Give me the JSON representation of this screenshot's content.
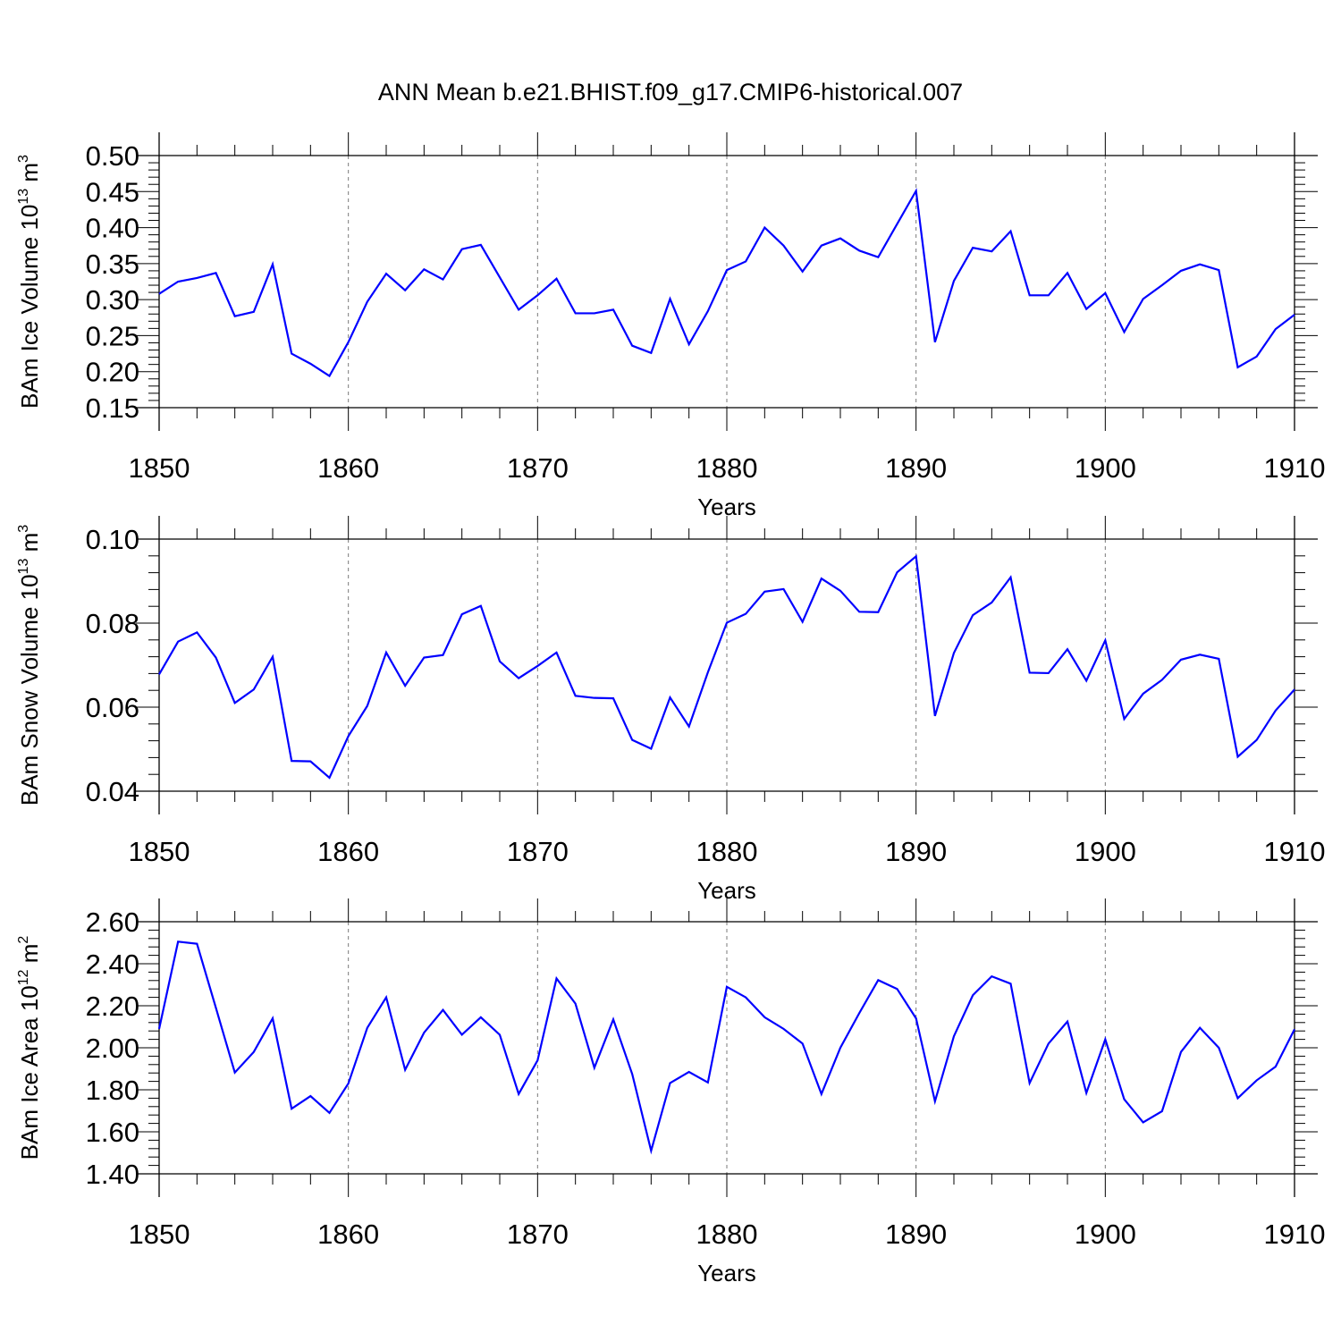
{
  "title": "ANN Mean b.e21.BHIST.f09_g17.CMIP6-historical.007",
  "colors": {
    "line": "#0000ff",
    "axis": "#000000",
    "grid": "#7a7a7a"
  },
  "chart_data": [
    {
      "type": "line",
      "xlabel": "Years",
      "ylabel": "BAm Ice Volume 10",
      "ylabel_exp": "13",
      "ylabel_unit": " m",
      "ylabel_unit_exp": "3",
      "xlim": [
        1850,
        1910
      ],
      "ylim": [
        0.15,
        0.5
      ],
      "x_ticks": [
        1850,
        1860,
        1870,
        1880,
        1890,
        1900,
        1910
      ],
      "y_ticks": [
        "0.15",
        "0.20",
        "0.25",
        "0.30",
        "0.35",
        "0.40",
        "0.45",
        "0.50"
      ],
      "grid": "vertical dashed at major x ticks",
      "x": [
        1850,
        1851,
        1852,
        1853,
        1854,
        1855,
        1856,
        1857,
        1858,
        1859,
        1860,
        1861,
        1862,
        1863,
        1864,
        1865,
        1866,
        1867,
        1868,
        1869,
        1870,
        1871,
        1872,
        1873,
        1874,
        1875,
        1876,
        1877,
        1878,
        1879,
        1880,
        1881,
        1882,
        1883,
        1884,
        1885,
        1886,
        1887,
        1888,
        1889,
        1890,
        1891,
        1892,
        1893,
        1894,
        1895,
        1896,
        1897,
        1898,
        1899,
        1900,
        1901,
        1902,
        1903,
        1904,
        1905,
        1906,
        1907,
        1908,
        1909,
        1910
      ],
      "values": [
        0.308,
        0.325,
        0.33,
        0.337,
        0.277,
        0.283,
        0.349,
        0.225,
        0.211,
        0.194,
        0.241,
        0.297,
        0.336,
        0.313,
        0.342,
        0.328,
        0.37,
        0.376,
        0.331,
        0.286,
        0.306,
        0.329,
        0.281,
        0.281,
        0.286,
        0.236,
        0.226,
        0.301,
        0.238,
        0.284,
        0.341,
        0.353,
        0.4,
        0.375,
        0.339,
        0.375,
        0.385,
        0.368,
        0.359,
        0.405,
        0.451,
        0.241,
        0.326,
        0.372,
        0.367,
        0.395,
        0.306,
        0.306,
        0.337,
        0.287,
        0.309,
        0.255,
        0.301,
        0.32,
        0.34,
        0.349,
        0.341,
        0.206,
        0.221,
        0.259,
        0.279
      ]
    },
    {
      "type": "line",
      "xlabel": "Years",
      "ylabel": "BAm Snow Volume 10",
      "ylabel_exp": "13",
      "ylabel_unit": " m",
      "ylabel_unit_exp": "3",
      "xlim": [
        1850,
        1910
      ],
      "ylim": [
        0.04,
        0.1
      ],
      "x_ticks": [
        1850,
        1860,
        1870,
        1880,
        1890,
        1900,
        1910
      ],
      "y_ticks": [
        "0.04",
        "0.06",
        "0.08",
        "0.10"
      ],
      "grid": "vertical dashed at major x ticks",
      "x": [
        1850,
        1851,
        1852,
        1853,
        1854,
        1855,
        1856,
        1857,
        1858,
        1859,
        1860,
        1861,
        1862,
        1863,
        1864,
        1865,
        1866,
        1867,
        1868,
        1869,
        1870,
        1871,
        1872,
        1873,
        1874,
        1875,
        1876,
        1877,
        1878,
        1879,
        1880,
        1881,
        1882,
        1883,
        1884,
        1885,
        1886,
        1887,
        1888,
        1889,
        1890,
        1891,
        1892,
        1893,
        1894,
        1895,
        1896,
        1897,
        1898,
        1899,
        1900,
        1901,
        1902,
        1903,
        1904,
        1905,
        1906,
        1907,
        1908,
        1909,
        1910
      ],
      "values": [
        0.0678,
        0.0756,
        0.0778,
        0.0718,
        0.061,
        0.0642,
        0.072,
        0.0472,
        0.0471,
        0.0432,
        0.0531,
        0.0603,
        0.073,
        0.0651,
        0.0718,
        0.0724,
        0.0821,
        0.0841,
        0.0709,
        0.0669,
        0.0698,
        0.073,
        0.0627,
        0.0622,
        0.0621,
        0.0522,
        0.0501,
        0.0623,
        0.0554,
        0.0683,
        0.0801,
        0.0822,
        0.0875,
        0.0881,
        0.0803,
        0.0906,
        0.0877,
        0.0827,
        0.0826,
        0.0921,
        0.0959,
        0.0579,
        0.0729,
        0.0819,
        0.0849,
        0.0909,
        0.0682,
        0.0681,
        0.0738,
        0.0663,
        0.0759,
        0.0572,
        0.0632,
        0.0665,
        0.0713,
        0.0725,
        0.0715,
        0.0482,
        0.0522,
        0.0592,
        0.0642
      ]
    },
    {
      "type": "line",
      "xlabel": "Years",
      "ylabel": "BAm Ice Area 10",
      "ylabel_exp": "12",
      "ylabel_unit": " m",
      "ylabel_unit_exp": "2",
      "xlim": [
        1850,
        1910
      ],
      "ylim": [
        1.4,
        2.6
      ],
      "x_ticks": [
        1850,
        1860,
        1870,
        1880,
        1890,
        1900,
        1910
      ],
      "y_ticks": [
        "1.40",
        "1.60",
        "1.80",
        "2.00",
        "2.20",
        "2.40",
        "2.60"
      ],
      "grid": "vertical dashed at major x ticks",
      "x": [
        1850,
        1851,
        1852,
        1853,
        1854,
        1855,
        1856,
        1857,
        1858,
        1859,
        1860,
        1861,
        1862,
        1863,
        1864,
        1865,
        1866,
        1867,
        1868,
        1869,
        1870,
        1871,
        1872,
        1873,
        1874,
        1875,
        1876,
        1877,
        1878,
        1879,
        1880,
        1881,
        1882,
        1883,
        1884,
        1885,
        1886,
        1887,
        1888,
        1889,
        1890,
        1891,
        1892,
        1893,
        1894,
        1895,
        1896,
        1897,
        1898,
        1899,
        1900,
        1901,
        1902,
        1903,
        1904,
        1905,
        1906,
        1907,
        1908,
        1909,
        1910
      ],
      "values": [
        2.09,
        2.505,
        2.495,
        2.19,
        1.882,
        1.98,
        2.14,
        1.71,
        1.77,
        1.69,
        1.83,
        2.095,
        2.24,
        1.895,
        2.072,
        2.18,
        2.062,
        2.145,
        2.062,
        1.78,
        1.94,
        2.33,
        2.21,
        1.905,
        2.135,
        1.875,
        1.51,
        1.832,
        1.885,
        1.835,
        2.29,
        2.24,
        2.145,
        2.09,
        2.02,
        1.78,
        2.0,
        2.165,
        2.322,
        2.28,
        2.14,
        1.745,
        2.055,
        2.25,
        2.34,
        2.305,
        1.832,
        2.02,
        2.125,
        1.785,
        2.04,
        1.755,
        1.645,
        1.698,
        1.98,
        2.095,
        2.0,
        1.76,
        1.845,
        1.91,
        2.088
      ]
    }
  ]
}
